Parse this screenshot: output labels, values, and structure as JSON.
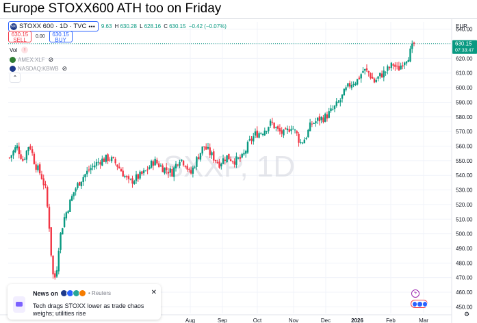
{
  "page_title": "Europe STOXX600 ATH too on Friday",
  "symbol": {
    "logo": "500",
    "name": "STOXX 600 · 1D · TVC",
    "more": "•••"
  },
  "ohlc": {
    "o_label": "",
    "o": "9.63",
    "h_label": "H",
    "h": "630.28",
    "l_label": "L",
    "l": "628.16",
    "c_label": "C",
    "c": "630.15",
    "change": "−0.42 (−0.07%)"
  },
  "trade": {
    "sell_price": "630.15",
    "sell_label": "SELL",
    "spread": "0.00",
    "buy_price": "630.15",
    "buy_label": "BUY"
  },
  "indicators": [
    {
      "label": "Vol",
      "alert": "!"
    },
    {
      "label": "AMEX:XLF",
      "color": "#2e7d32"
    },
    {
      "label": "NASDAQ:KBWB",
      "color": "#1e3a8a"
    }
  ],
  "collapse_icon": "chevron-up-icon",
  "watermark": "SXXP, 1D",
  "news": {
    "label": "News on",
    "source": "• Reuters",
    "headline": "Tech drags STOXX lower as trade chaos weighs; utilities rise",
    "close": "✕",
    "source_dot_colors": [
      "#1e3a8a",
      "#2962ff",
      "#26a69a",
      "#f57c00"
    ]
  },
  "price_label": {
    "price": "630.15",
    "countdown": "07:33:47"
  },
  "settings_icon": "gear-icon",
  "chart_data": {
    "type": "candlestick",
    "currency": "EUR",
    "y_ticks": [
      450,
      460,
      470,
      480,
      490,
      500,
      510,
      520,
      530,
      540,
      550,
      560,
      570,
      580,
      590,
      600,
      610,
      620,
      630,
      640
    ],
    "ylim": [
      445.5,
      645
    ],
    "x_ticks": [
      "Aug",
      "Sep",
      "Oct",
      "Nov",
      "Dec",
      "2026",
      "Feb",
      "Mar"
    ],
    "last_price": 630.15,
    "up_color": "#089981",
    "down_color": "#f23645",
    "series_description": "approximate daily candles, April 2025 to late February 2026",
    "path": [
      {
        "d": 0,
        "v": 552
      },
      {
        "d": 8,
        "v": 560
      },
      {
        "d": 15,
        "v": 550
      },
      {
        "d": 22,
        "v": 562
      },
      {
        "d": 28,
        "v": 548
      },
      {
        "d": 35,
        "v": 540
      },
      {
        "d": 40,
        "v": 530
      },
      {
        "d": 44,
        "v": 505
      },
      {
        "d": 47,
        "v": 478
      },
      {
        "d": 49,
        "v": 467
      },
      {
        "d": 52,
        "v": 475
      },
      {
        "d": 55,
        "v": 495
      },
      {
        "d": 60,
        "v": 510
      },
      {
        "d": 66,
        "v": 520
      },
      {
        "d": 72,
        "v": 530
      },
      {
        "d": 80,
        "v": 538
      },
      {
        "d": 90,
        "v": 545
      },
      {
        "d": 100,
        "v": 550
      },
      {
        "d": 110,
        "v": 552
      },
      {
        "d": 118,
        "v": 548
      },
      {
        "d": 125,
        "v": 542
      },
      {
        "d": 132,
        "v": 535
      },
      {
        "d": 140,
        "v": 538
      },
      {
        "d": 150,
        "v": 542
      },
      {
        "d": 160,
        "v": 550
      },
      {
        "d": 170,
        "v": 545
      },
      {
        "d": 180,
        "v": 542
      },
      {
        "d": 188,
        "v": 552
      },
      {
        "d": 195,
        "v": 548
      },
      {
        "d": 200,
        "v": 540
      },
      {
        "d": 208,
        "v": 552
      },
      {
        "d": 215,
        "v": 560
      },
      {
        "d": 222,
        "v": 555
      },
      {
        "d": 232,
        "v": 548
      },
      {
        "d": 240,
        "v": 553
      },
      {
        "d": 250,
        "v": 550
      },
      {
        "d": 258,
        "v": 552
      },
      {
        "d": 265,
        "v": 562
      },
      {
        "d": 272,
        "v": 568
      },
      {
        "d": 280,
        "v": 570
      },
      {
        "d": 290,
        "v": 576
      },
      {
        "d": 298,
        "v": 570
      },
      {
        "d": 305,
        "v": 568
      },
      {
        "d": 312,
        "v": 574
      },
      {
        "d": 318,
        "v": 568
      },
      {
        "d": 322,
        "v": 562
      },
      {
        "d": 328,
        "v": 566
      },
      {
        "d": 334,
        "v": 575
      },
      {
        "d": 342,
        "v": 578
      },
      {
        "d": 350,
        "v": 580
      },
      {
        "d": 358,
        "v": 585
      },
      {
        "d": 365,
        "v": 590
      },
      {
        "d": 372,
        "v": 598
      },
      {
        "d": 378,
        "v": 603
      },
      {
        "d": 385,
        "v": 605
      },
      {
        "d": 392,
        "v": 612
      },
      {
        "d": 398,
        "v": 610
      },
      {
        "d": 404,
        "v": 604
      },
      {
        "d": 410,
        "v": 608
      },
      {
        "d": 418,
        "v": 612
      },
      {
        "d": 425,
        "v": 616
      },
      {
        "d": 430,
        "v": 612
      },
      {
        "d": 436,
        "v": 618
      },
      {
        "d": 442,
        "v": 622
      },
      {
        "d": 448,
        "v": 630
      }
    ]
  }
}
